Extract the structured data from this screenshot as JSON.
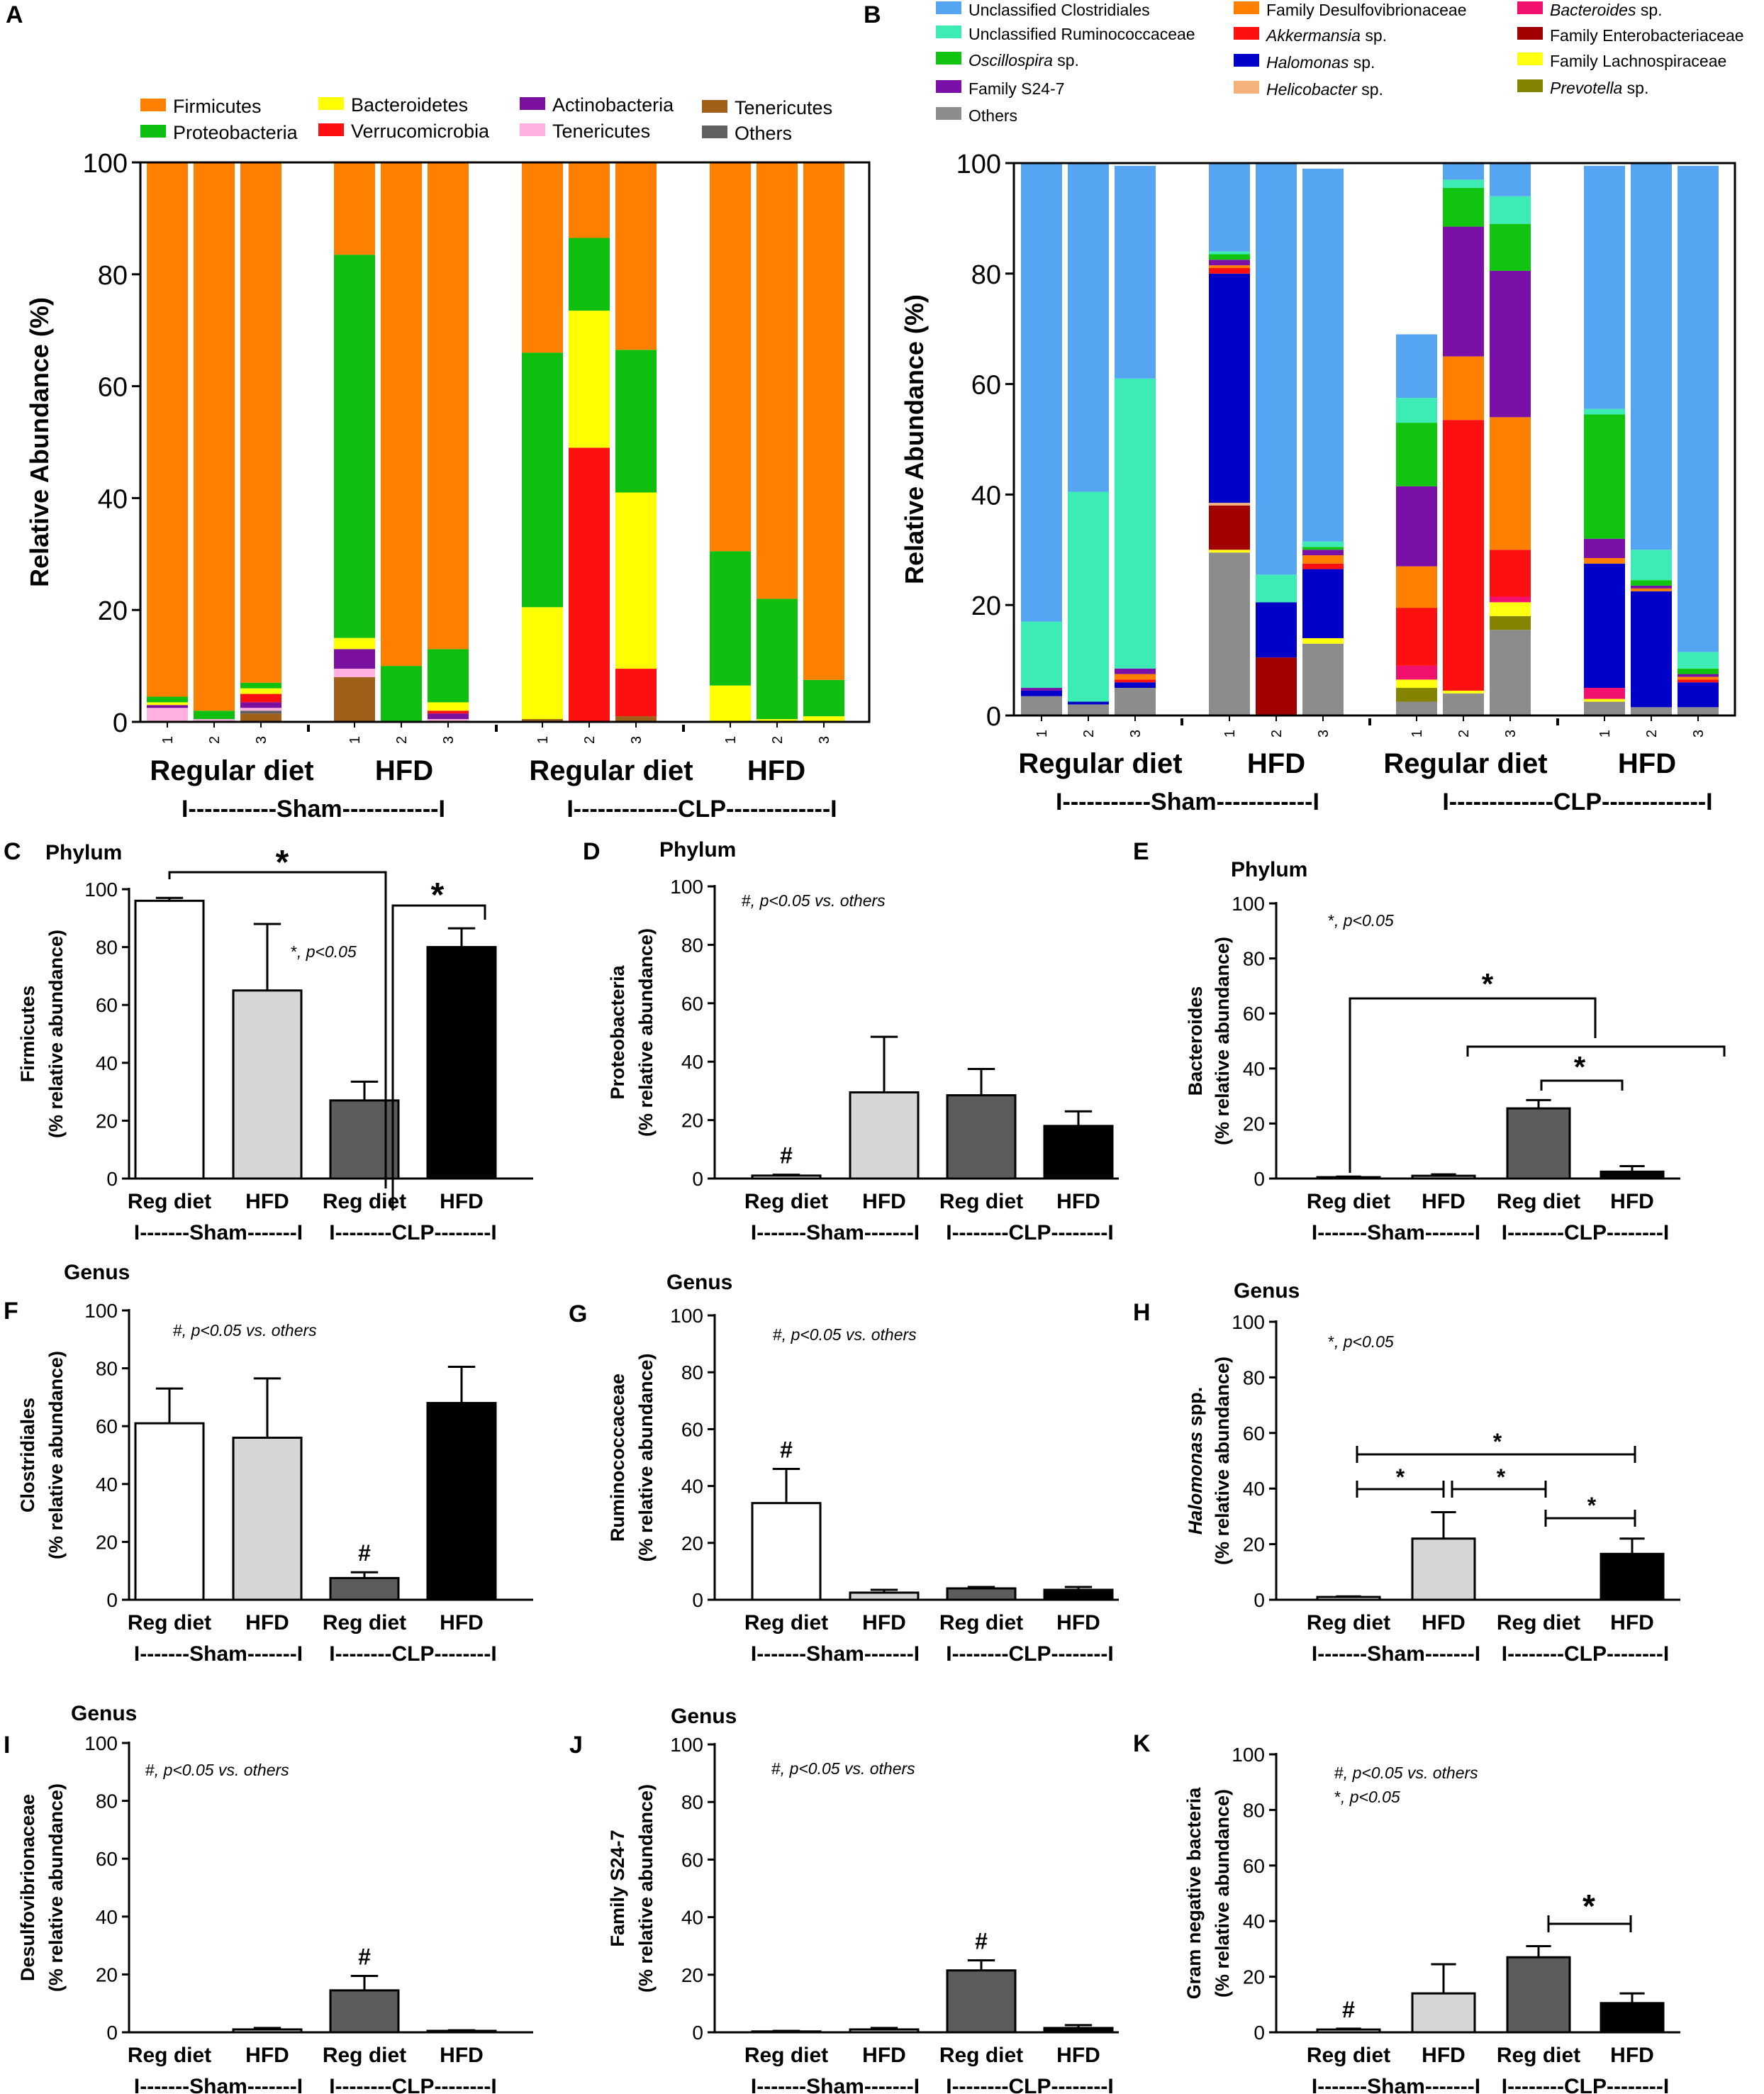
{
  "chart_data": [
    {
      "id": "A",
      "panel_label": "A",
      "type": "bar",
      "stacked": true,
      "ylabel": "Relative Abundance (%)",
      "ylim": [
        0,
        100
      ],
      "yticks": [
        0,
        20,
        40,
        60,
        80,
        100
      ],
      "groups": [
        {
          "label": "Regular diet",
          "samples": [
            "1",
            "2",
            "3"
          ]
        },
        {
          "label": "HFD",
          "samples": [
            "1",
            "2",
            "3"
          ]
        },
        {
          "label": "Regular diet",
          "samples": [
            "1",
            "2",
            "3"
          ]
        },
        {
          "label": "HFD",
          "samples": [
            "1",
            "2",
            "3"
          ]
        }
      ],
      "supergroups": [
        "I-----------Sham------------I",
        "I-------------CLP-------------I"
      ],
      "legend": [
        {
          "name": "Firmicutes",
          "color": "#FF8000"
        },
        {
          "name": "Proteobacteria",
          "color": "#0FBF0F"
        },
        {
          "name": "Bacteroidetes",
          "color": "#FFFF00"
        },
        {
          "name": "Verrucomicrobia",
          "color": "#FF1010"
        },
        {
          "name": "Actinobacteria",
          "color": "#7B0FA0"
        },
        {
          "name": "Tenericutes",
          "color": "#FFB0E0"
        },
        {
          "name": "Tenericutes",
          "color": "#A0601A"
        },
        {
          "name": "Others",
          "color": "#606060"
        }
      ],
      "series": [
        {
          "name": "Tenericutes (brown)",
          "color": "#A0601A",
          "values": [
            0,
            0,
            1.5,
            8,
            0,
            0,
            0.5,
            0,
            1,
            0,
            0,
            0
          ]
        },
        {
          "name": "Others",
          "color": "#606060",
          "values": [
            0,
            0,
            0.5,
            0,
            0,
            0,
            0,
            0,
            0,
            0,
            0,
            0
          ]
        },
        {
          "name": "Tenericutes (pink)",
          "color": "#FFB0E0",
          "values": [
            2.5,
            0.5,
            0.5,
            1.5,
            0,
            0.5,
            0,
            0,
            0,
            0,
            0,
            0
          ]
        },
        {
          "name": "Actinobacteria",
          "color": "#7B0FA0",
          "values": [
            0.5,
            0,
            1,
            3.5,
            0,
            1,
            0,
            0,
            0,
            0,
            0,
            0
          ]
        },
        {
          "name": "Verrucomicrobia",
          "color": "#FF1010",
          "values": [
            0,
            0,
            1.5,
            0,
            0,
            0.5,
            0,
            49,
            8.5,
            0,
            0,
            0
          ]
        },
        {
          "name": "Bacteroidetes",
          "color": "#FFFF00",
          "values": [
            0.5,
            0,
            1,
            2,
            0,
            1.5,
            20,
            24.5,
            31.5,
            6.5,
            0.5,
            1
          ]
        },
        {
          "name": "Proteobacteria",
          "color": "#0FBF0F",
          "values": [
            1,
            1.5,
            1,
            68.5,
            10,
            9.5,
            45.5,
            13,
            25.5,
            24,
            21.5,
            6.5
          ]
        },
        {
          "name": "Firmicutes",
          "color": "#FF8000",
          "values": [
            95.5,
            98,
            93,
            16.5,
            90,
            87,
            34,
            13.5,
            33.5,
            69.5,
            78,
            92.5
          ]
        }
      ]
    },
    {
      "id": "B",
      "panel_label": "B",
      "type": "bar",
      "stacked": true,
      "ylabel": "Relative Abundance (%)",
      "ylim": [
        0,
        100
      ],
      "yticks": [
        0,
        20,
        40,
        60,
        80,
        100
      ],
      "groups": [
        {
          "label": "Regular diet",
          "samples": [
            "1",
            "2",
            "3"
          ]
        },
        {
          "label": "HFD",
          "samples": [
            "1",
            "2",
            "3"
          ]
        },
        {
          "label": "Regular diet",
          "samples": [
            "1",
            "2",
            "3"
          ]
        },
        {
          "label": "HFD",
          "samples": [
            "1",
            "2",
            "3"
          ]
        }
      ],
      "supergroups": [
        "I-----------Sham------------I",
        "I-------------CLP-------------I"
      ],
      "legend": [
        {
          "name": "Unclassified Clostridiales",
          "italic": "",
          "color": "#56A5F2"
        },
        {
          "name": "Unclassified Ruminococcaceae",
          "italic": "",
          "color": "#3DEBB4"
        },
        {
          "name": " sp.",
          "italic": "Oscillospira",
          "color": "#10C410"
        },
        {
          "name": "Family S24-7",
          "italic": "",
          "color": "#7B10A8"
        },
        {
          "name": "Others",
          "italic": "",
          "color": "#8C8C8C"
        },
        {
          "name": "Family Desulfovibrionaceae",
          "italic": "",
          "color": "#FF8000"
        },
        {
          "name": " sp.",
          "italic": "Akkermansia",
          "color": "#FF1010"
        },
        {
          "name": " sp.",
          "italic": "Halomonas",
          "color": "#0000C8"
        },
        {
          "name": " sp.",
          "italic": "Helicobacter",
          "color": "#F5B27A"
        },
        {
          "name": " sp.",
          "italic": "Bacteroides",
          "color": "#F2106E"
        },
        {
          "name": "Family Enterobacteriaceae",
          "italic": "",
          "color": "#A00000"
        },
        {
          "name": "Family Lachnospiraceae",
          "italic": "",
          "color": "#FFFF10"
        },
        {
          "name": " sp.",
          "italic": "Prevotella",
          "color": "#848400"
        }
      ],
      "series": [
        {
          "name": "Others",
          "color": "#8C8C8C",
          "values": [
            3.5,
            2,
            5,
            29.5,
            0,
            13,
            2.5,
            4,
            15.5,
            2.5,
            1.5,
            1.5
          ]
        },
        {
          "name": "Prevotella sp.",
          "color": "#848400",
          "values": [
            0,
            0,
            0,
            0,
            0,
            0,
            2.5,
            0,
            2.5,
            0,
            0,
            0
          ]
        },
        {
          "name": "Family Lachnospiraceae",
          "color": "#FFFF10",
          "values": [
            0,
            0,
            0,
            0.5,
            0,
            1,
            1.5,
            0.5,
            2.5,
            0.5,
            0,
            0
          ]
        },
        {
          "name": "Family Enterobacteriaceae",
          "color": "#A00000",
          "values": [
            0,
            0,
            0,
            8,
            10.5,
            0,
            0,
            0,
            0,
            0,
            0,
            0
          ]
        },
        {
          "name": "Bacteroides sp.",
          "color": "#F2106E",
          "values": [
            0,
            0,
            0,
            0,
            0,
            0,
            2.5,
            0,
            1,
            2,
            0,
            0
          ]
        },
        {
          "name": "Helicobacter sp.",
          "color": "#F5B27A",
          "values": [
            0,
            0,
            0,
            0.5,
            0,
            0,
            0,
            0,
            0,
            0,
            0,
            0
          ]
        },
        {
          "name": "Halomonas sp.",
          "color": "#0000C8",
          "values": [
            1,
            0.5,
            1,
            41.5,
            10,
            12.5,
            0,
            0,
            0,
            22.5,
            21,
            4.5
          ]
        },
        {
          "name": "Akkermansia sp.",
          "color": "#FF1010",
          "values": [
            0,
            0,
            0.5,
            1,
            0,
            1,
            10.5,
            49,
            8.5,
            0,
            0,
            0.5
          ]
        },
        {
          "name": "Family Desulfovibrionaceae",
          "color": "#FF8000",
          "values": [
            0,
            0,
            1,
            0.5,
            0,
            1.5,
            7.5,
            11.5,
            24,
            1,
            0.5,
            0.5
          ]
        },
        {
          "name": "Family S24-7",
          "color": "#7B10A8",
          "values": [
            0.5,
            0,
            1,
            1,
            0,
            1,
            14.5,
            23.5,
            26.5,
            3.5,
            0.5,
            0.5
          ]
        },
        {
          "name": "Oscillospira sp.",
          "color": "#10C410",
          "values": [
            0,
            0,
            0,
            1,
            0,
            0.5,
            11.5,
            7,
            8.5,
            22.5,
            1,
            1
          ]
        },
        {
          "name": "Unclassified Ruminococcaceae",
          "color": "#3DEBB4",
          "values": [
            12,
            38,
            52.5,
            0.5,
            5,
            1,
            4.5,
            1.5,
            5,
            1,
            5.5,
            3
          ]
        },
        {
          "name": "Unclassified Clostridiales",
          "color": "#56A5F2",
          "values": [
            83,
            59.5,
            38.5,
            16,
            74.5,
            67.5,
            11.5,
            3,
            6,
            44,
            70,
            88
          ]
        }
      ]
    },
    {
      "id": "C",
      "panel_label": "C",
      "type": "bar",
      "title": "Phylum",
      "ylabel": [
        "Firmicutes",
        "(% relative abundance)"
      ],
      "ylim": [
        0,
        100
      ],
      "yticks": [
        0,
        20,
        40,
        60,
        80,
        100
      ],
      "categories": [
        "Reg diet",
        "HFD",
        "Reg diet",
        "HFD"
      ],
      "values": [
        96,
        65,
        27,
        80
      ],
      "errors": [
        1,
        23,
        6.5,
        6.5
      ],
      "groups": [
        "I-------Sham-------I",
        "I--------CLP--------I"
      ],
      "notes": [
        {
          "sym": "*",
          "text": ", p<0.05"
        }
      ],
      "marks": []
    },
    {
      "id": "D",
      "panel_label": "D",
      "type": "bar",
      "title": "Phylum",
      "ylabel": [
        "Proteobacteria",
        "(% relative abundance)"
      ],
      "ylim": [
        0,
        100
      ],
      "yticks": [
        0,
        20,
        40,
        60,
        80,
        100
      ],
      "categories": [
        "Reg diet",
        "HFD",
        "Reg diet",
        "HFD"
      ],
      "values": [
        1,
        29.5,
        28.5,
        18
      ],
      "errors": [
        0.3,
        19,
        9,
        5
      ],
      "groups": [
        "I-------Sham-------I",
        "I--------CLP--------I"
      ],
      "notes": [
        {
          "sym": "#",
          "text": ", p<0.05 vs. others"
        }
      ],
      "marks": [
        {
          "bar": 0,
          "text": "#"
        }
      ]
    },
    {
      "id": "E",
      "panel_label": "E",
      "type": "bar",
      "title": "Phylum",
      "ylabel": [
        "Bacteroides",
        "(% relative abundance)"
      ],
      "ylim": [
        0,
        100
      ],
      "yticks": [
        0,
        20,
        40,
        60,
        80,
        100
      ],
      "categories": [
        "Reg diet",
        "HFD",
        "Reg diet",
        "HFD"
      ],
      "values": [
        0.5,
        1,
        25.5,
        2.5
      ],
      "errors": [
        0.2,
        0.5,
        3,
        2
      ],
      "groups": [
        "I-------Sham-------I",
        "I--------CLP--------I"
      ],
      "notes": [
        {
          "sym": "*",
          "text": ", p<0.05"
        }
      ],
      "marks": []
    },
    {
      "id": "F",
      "panel_label": "F",
      "type": "bar",
      "title": "Genus",
      "ylabel": [
        "Clostridiales",
        "(% relative abundance)"
      ],
      "ylim": [
        0,
        100
      ],
      "yticks": [
        0,
        20,
        40,
        60,
        80,
        100
      ],
      "categories": [
        "Reg diet",
        "HFD",
        "Reg diet",
        "HFD"
      ],
      "values": [
        61,
        56,
        7.5,
        68
      ],
      "errors": [
        12,
        20.5,
        2,
        12.5
      ],
      "groups": [
        "I-------Sham-------I",
        "I--------CLP--------I"
      ],
      "notes": [
        {
          "sym": "#",
          "text": ", p<0.05 vs. others"
        }
      ],
      "marks": [
        {
          "bar": 2,
          "text": "#"
        }
      ]
    },
    {
      "id": "G",
      "panel_label": "G",
      "type": "bar",
      "title": "Genus",
      "ylabel": [
        "Ruminococcaceae",
        "(% relative abundance)"
      ],
      "ylim": [
        0,
        100
      ],
      "yticks": [
        0,
        20,
        40,
        60,
        80,
        100
      ],
      "categories": [
        "Reg diet",
        "HFD",
        "Reg diet",
        "HFD"
      ],
      "values": [
        34,
        2.5,
        4,
        3.5
      ],
      "errors": [
        12,
        1,
        0.5,
        1
      ],
      "groups": [
        "I-------Sham-------I",
        "I--------CLP--------I"
      ],
      "notes": [
        {
          "sym": "#",
          "text": ", p<0.05 vs. others"
        }
      ],
      "marks": [
        {
          "bar": 0,
          "text": "#"
        }
      ]
    },
    {
      "id": "H",
      "panel_label": "H",
      "type": "bar",
      "title": "Genus",
      "ylabel": [
        "Halomonas spp.",
        "(% relative abundance)"
      ],
      "ylabel_italic": "Halomonas",
      "ylim": [
        0,
        100
      ],
      "yticks": [
        0,
        20,
        40,
        60,
        80,
        100
      ],
      "categories": [
        "Reg diet",
        "HFD",
        "Reg diet",
        "HFD"
      ],
      "values": [
        1,
        22,
        0,
        16.5
      ],
      "errors": [
        0.2,
        9.5,
        0,
        5.5
      ],
      "groups": [
        "I-------Sham-------I",
        "I--------CLP--------I"
      ],
      "notes": [
        {
          "sym": "*",
          "text": ", p<0.05"
        }
      ],
      "marks": []
    },
    {
      "id": "I",
      "panel_label": "I",
      "type": "bar",
      "title": "Genus",
      "ylabel": [
        "Desulfovibrionaceae",
        "(% relative abundance)"
      ],
      "ylim": [
        0,
        100
      ],
      "yticks": [
        0,
        20,
        40,
        60,
        80,
        100
      ],
      "categories": [
        "Reg diet",
        "HFD",
        "Reg diet",
        "HFD"
      ],
      "values": [
        0,
        1,
        14.5,
        0.5
      ],
      "errors": [
        0,
        0.5,
        5,
        0.2
      ],
      "groups": [
        "I-------Sham-------I",
        "I--------CLP--------I"
      ],
      "notes": [
        {
          "sym": "#",
          "text": ", p<0.05 vs. others"
        }
      ],
      "marks": [
        {
          "bar": 2,
          "text": "#"
        }
      ]
    },
    {
      "id": "J",
      "panel_label": "J",
      "type": "bar",
      "title": "Genus",
      "ylabel": [
        "Family S24-7",
        "(% relative abundance)"
      ],
      "ylim": [
        0,
        100
      ],
      "yticks": [
        0,
        20,
        40,
        60,
        80,
        100
      ],
      "categories": [
        "Reg diet",
        "HFD",
        "Reg diet",
        "HFD"
      ],
      "values": [
        0.3,
        1,
        21.5,
        1.5
      ],
      "errors": [
        0.2,
        0.5,
        3.5,
        1
      ],
      "groups": [
        "I-------Sham-------I",
        "I--------CLP--------I"
      ],
      "notes": [
        {
          "sym": "#",
          "text": ", p<0.05 vs. others"
        }
      ],
      "marks": [
        {
          "bar": 2,
          "text": "#"
        }
      ]
    },
    {
      "id": "K",
      "panel_label": "K",
      "type": "bar",
      "ylabel": [
        "Gram negative bacteria",
        "(% relative abundance)"
      ],
      "ylim": [
        0,
        100
      ],
      "yticks": [
        0,
        20,
        40,
        60,
        80,
        100
      ],
      "categories": [
        "Reg diet",
        "HFD",
        "Reg diet",
        "HFD"
      ],
      "values": [
        1,
        14,
        27,
        10.5
      ],
      "errors": [
        0.3,
        10.5,
        4,
        3.5
      ],
      "groups": [
        "I-------Sham-------I",
        "I--------CLP--------I"
      ],
      "notes": [
        {
          "sym": "#",
          "text": ", p<0.05 vs. others"
        },
        {
          "sym": "*",
          "text": ", p<0.05"
        }
      ],
      "marks": [
        {
          "bar": 0,
          "text": "#"
        }
      ]
    }
  ],
  "significance_symbol": "*"
}
